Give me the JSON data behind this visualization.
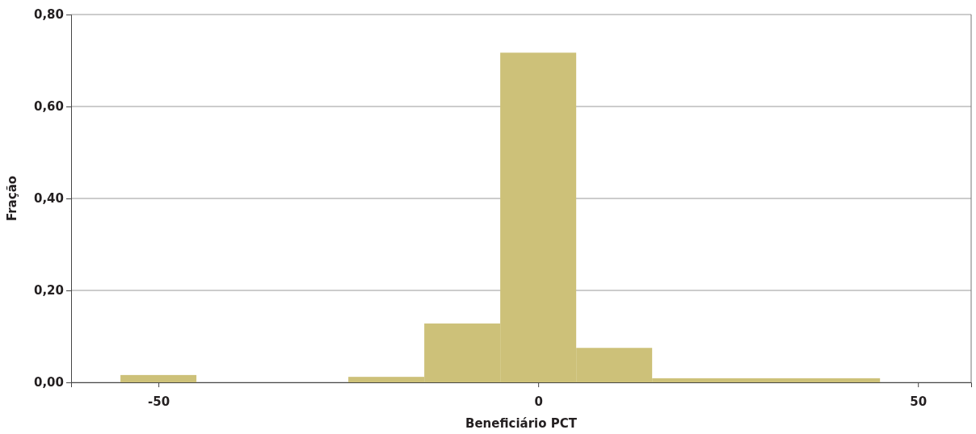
{
  "chart_data": {
    "type": "histogram",
    "xlabel": "Beneficiário PCT",
    "ylabel": "Fração",
    "bins": [
      -55,
      -45,
      -25,
      -15,
      -5,
      5,
      15,
      45
    ],
    "values": [
      0.016,
      0,
      0.012,
      0.128,
      0.717,
      0.075,
      0.009
    ],
    "color": "#cdc179",
    "xlim": [
      -61.5,
      57
    ],
    "xticks": [
      -50,
      0,
      50
    ],
    "ylim": [
      0,
      0.8
    ],
    "yticks": [
      {
        "value": 0,
        "label": "0,00"
      },
      {
        "value": 0.2,
        "label": "0,20"
      },
      {
        "value": 0.4,
        "label": "0,40"
      },
      {
        "value": 0.6,
        "label": "0,60"
      },
      {
        "value": 0.8,
        "label": "0,80"
      }
    ],
    "grid": "y"
  }
}
